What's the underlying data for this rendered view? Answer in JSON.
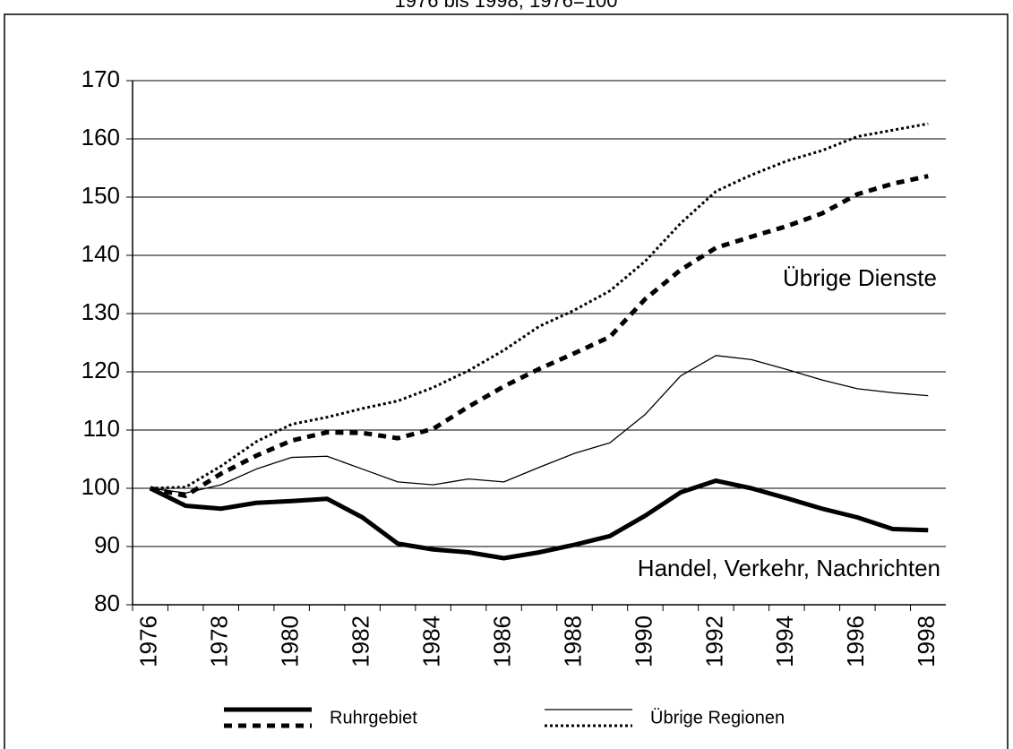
{
  "chart_data": {
    "type": "line",
    "subtitle": "1976 bis 1998; 1976=100",
    "x": [
      1976,
      1977,
      1978,
      1979,
      1980,
      1981,
      1982,
      1983,
      1984,
      1985,
      1986,
      1987,
      1988,
      1989,
      1990,
      1991,
      1992,
      1993,
      1994,
      1995,
      1996,
      1997,
      1998
    ],
    "xlim": [
      1975.5,
      1998.5
    ],
    "xticks": [
      1976,
      1978,
      1980,
      1982,
      1984,
      1986,
      1988,
      1990,
      1992,
      1994,
      1996,
      1998
    ],
    "ylim": [
      80,
      170
    ],
    "yticks": [
      80,
      90,
      100,
      110,
      120,
      130,
      140,
      150,
      160,
      170
    ],
    "grid": true,
    "annotations": [
      "Übrige Dienste",
      "Handel, Verkehr, Nachrichten"
    ],
    "series": [
      {
        "name": "Ruhrgebiet",
        "color": "#000000",
        "style": "solid",
        "width": 5,
        "values": [
          100,
          97,
          96.5,
          97.5,
          97.8,
          98.2,
          95,
          90.5,
          89.5,
          89,
          88,
          89,
          90.3,
          91.8,
          95.3,
          99.3,
          101.3,
          100,
          98.3,
          96.5,
          95,
          93,
          92.8
        ]
      },
      {
        "name": "Übrige Regionen",
        "color": "#000000",
        "style": "solid",
        "width": 1.3,
        "values": [
          100,
          99.2,
          100.6,
          103.3,
          105.3,
          105.5,
          103.3,
          101.1,
          100.6,
          101.6,
          101.1,
          103.6,
          106,
          107.8,
          112.7,
          119.3,
          122.8,
          122.1,
          120.4,
          118.6,
          117.1,
          116.4,
          115.9
        ]
      },
      {
        "name": "Ruhrgebiet",
        "color": "#000000",
        "style": "dashed",
        "width": 5,
        "values": [
          100,
          98.7,
          102.5,
          105.6,
          108.2,
          109.6,
          109.5,
          108.6,
          110.2,
          114,
          117.5,
          120.5,
          123.2,
          126,
          132.5,
          137.5,
          141.3,
          143.2,
          145,
          147.2,
          150.5,
          152.3,
          153.6
        ]
      },
      {
        "name": "Übrige Regionen",
        "color": "#000000",
        "style": "dotted",
        "width": 3,
        "values": [
          100,
          100.2,
          103.8,
          108,
          111,
          112.2,
          113.7,
          115,
          117.3,
          120.2,
          123.7,
          127.8,
          130.6,
          133.9,
          139,
          145.5,
          151,
          153.8,
          156.2,
          158,
          160.4,
          161.5,
          162.6
        ]
      }
    ]
  }
}
